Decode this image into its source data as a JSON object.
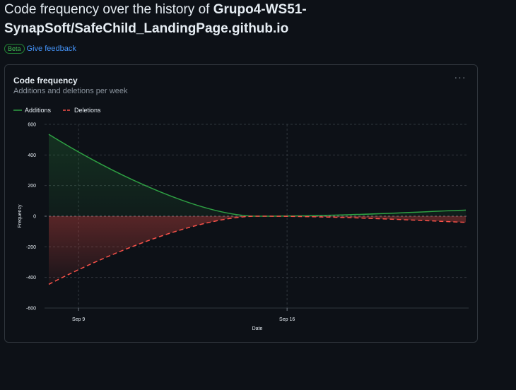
{
  "header": {
    "title_prefix": "Code frequency over the history of ",
    "repo_name": "Grupo4-WS51-SynapSoft/SafeChild_LandingPage.github.io",
    "beta_label": "Beta",
    "feedback_label": "Give feedback"
  },
  "card": {
    "menu_icon": "kebab-horizontal-icon",
    "menu_glyph": "···"
  },
  "colors": {
    "additions": "#2ea043",
    "deletions": "#f85149",
    "grid": "#30363d",
    "axis_text": "#e6edf3"
  },
  "chart_data": {
    "type": "area",
    "title": "Code frequency",
    "subtitle": "Additions and deletions per week",
    "xlabel": "Date",
    "ylabel": "Frequency",
    "ylim": [
      -600,
      600
    ],
    "yticks": [
      600,
      400,
      200,
      0,
      -200,
      -400,
      -600
    ],
    "x": [
      "2024-09-08",
      "2024-09-15",
      "2024-09-22"
    ],
    "xticks": [
      "Sep 9",
      "Sep 16"
    ],
    "legend": "top-left",
    "grid": true,
    "series": [
      {
        "name": "Additions",
        "values": [
          535,
          0,
          40
        ],
        "color": "#2ea043",
        "dashed": false
      },
      {
        "name": "Deletions",
        "values": [
          -445,
          0,
          -40
        ],
        "color": "#f85149",
        "dashed": true
      }
    ]
  }
}
